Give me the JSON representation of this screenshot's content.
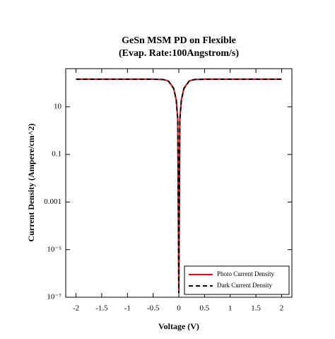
{
  "chart_data": {
    "type": "line",
    "title": [
      "GeSn MSM PD on Flexible",
      "(Evap. Rate:100Angstrom/s)"
    ],
    "xlabel": "Voltage (V)",
    "ylabel": "Current Density (Ampere/cm^2)",
    "x": [
      -2,
      -1.5,
      -1,
      -0.5,
      -0.3,
      -0.2,
      -0.1,
      -0.05,
      -0.02,
      0,
      0.02,
      0.05,
      0.1,
      0.2,
      0.3,
      0.5,
      1,
      1.5,
      2
    ],
    "series": [
      {
        "name": "Photo Current Density",
        "color": "#ff0000",
        "dash": false,
        "values": [
          145,
          145,
          145,
          144,
          140,
          120,
          60,
          20,
          3,
          1.5e-07,
          3,
          20,
          60,
          120,
          140,
          144,
          145,
          145,
          145
        ]
      },
      {
        "name": "Dark Current Density",
        "color": "#000000",
        "dash": true,
        "values": [
          145,
          145,
          145,
          144,
          139,
          118,
          58,
          19,
          2.8,
          1.5e-07,
          2.8,
          19,
          58,
          118,
          139,
          144,
          145,
          145,
          145
        ]
      }
    ],
    "xlim": [
      -2.2,
      2.2
    ],
    "xticks": [
      -2,
      -1.5,
      -1,
      -0.5,
      0,
      0.5,
      1,
      1.5,
      2
    ],
    "ylim": [
      1e-07,
      400
    ],
    "ylog": true,
    "yticks": [
      {
        "value": 1e-07,
        "label": "10⁻⁷"
      },
      {
        "value": 1e-05,
        "label": "10⁻⁵"
      },
      0.001,
      0.1,
      10
    ],
    "legend": "lower right",
    "grid": false
  }
}
